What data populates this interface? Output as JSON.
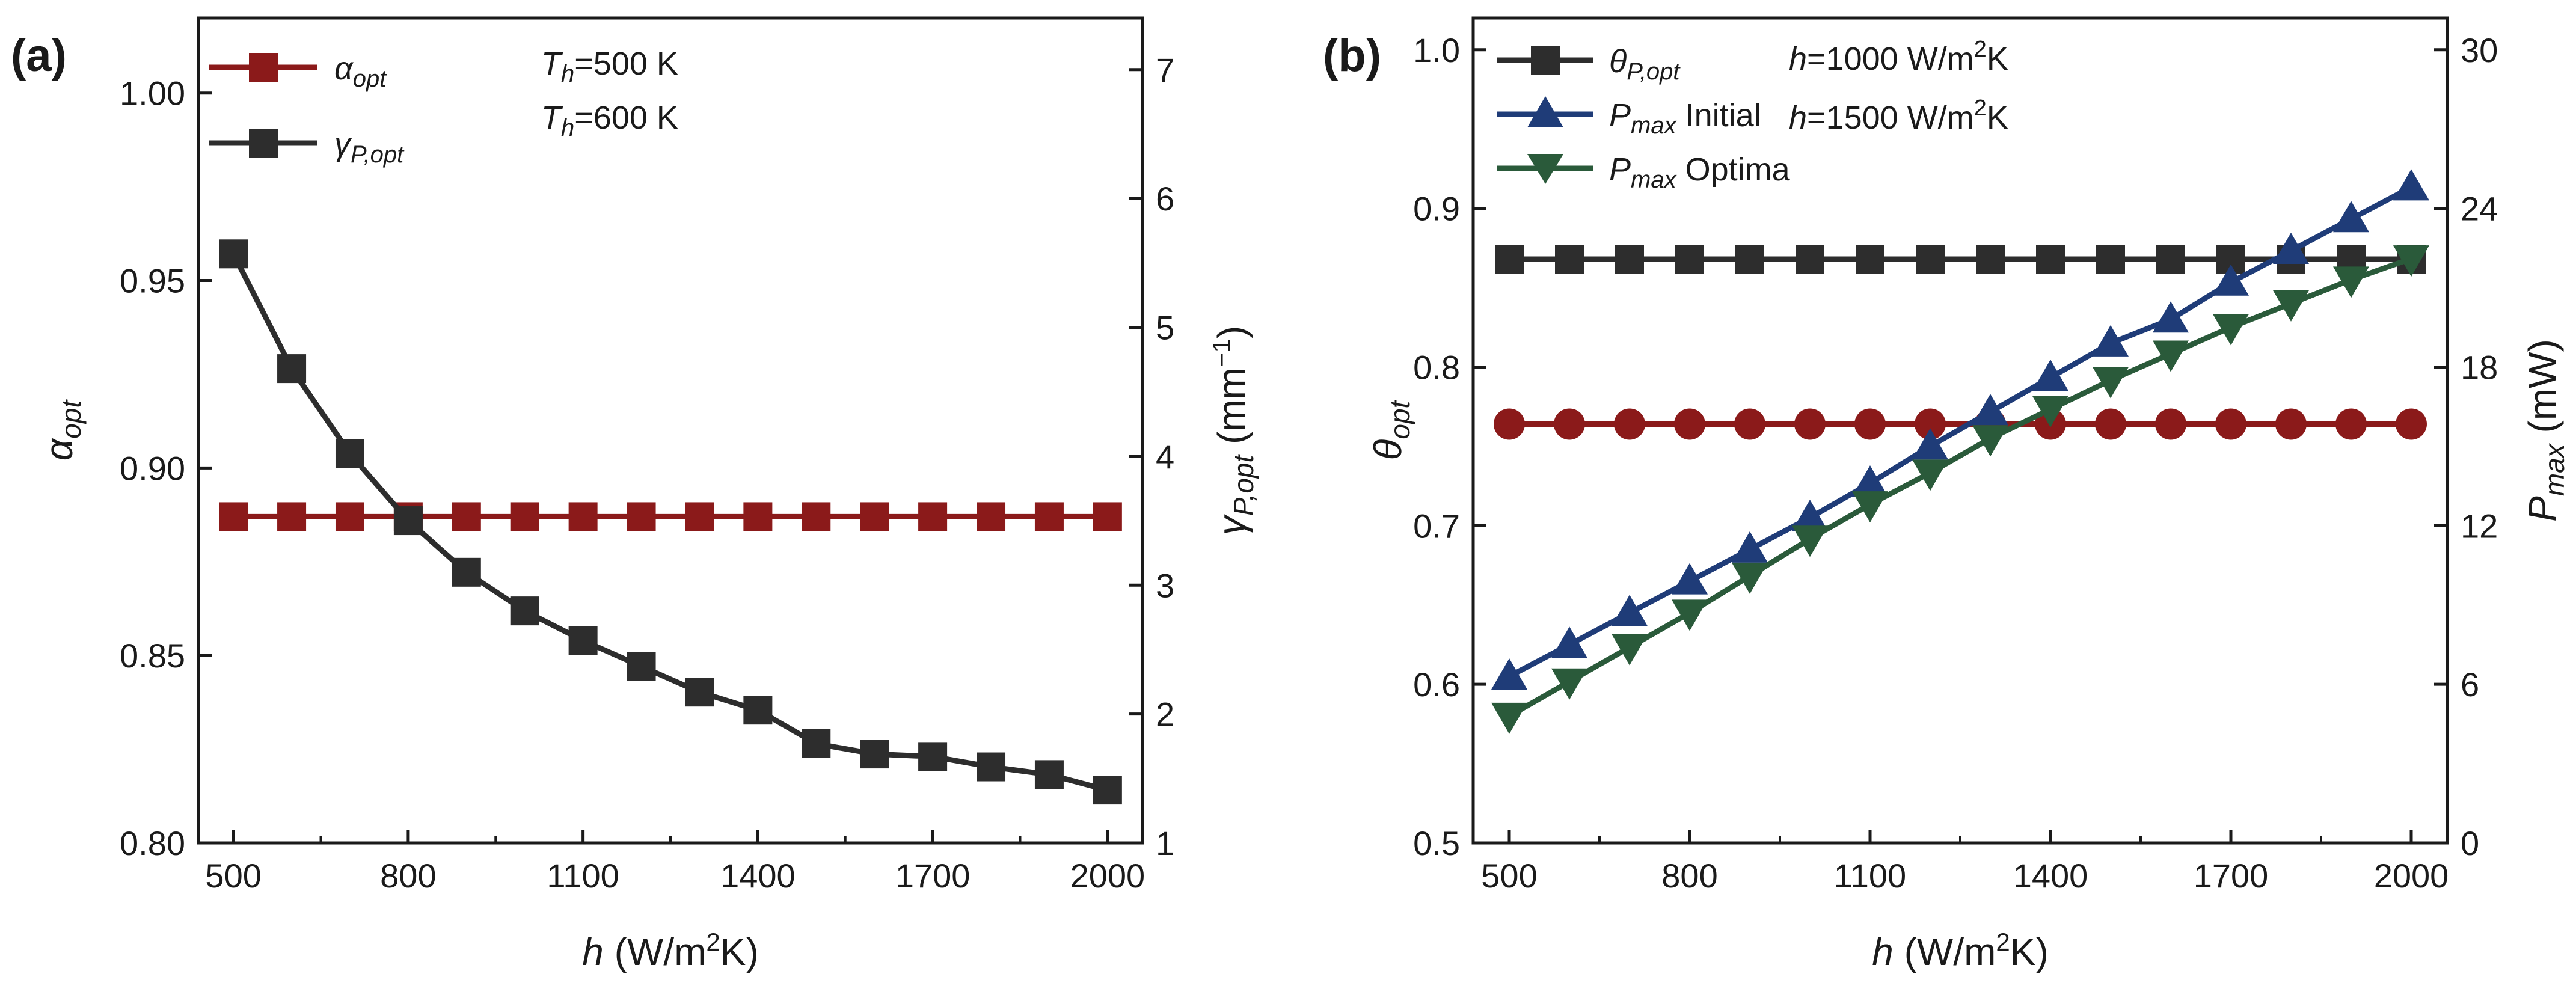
{
  "colors": {
    "red": "#8b1a1a",
    "black": "#2d2d2d",
    "blue": "#1f3c78",
    "green": "#2a5a3a",
    "axis": "#1a1a1a"
  },
  "chart_data": [
    {
      "panel": "(a)",
      "type": "line",
      "x": [
        500,
        600,
        700,
        800,
        900,
        1000,
        1100,
        1200,
        1300,
        1400,
        1500,
        1600,
        1700,
        1800,
        1900,
        2000
      ],
      "xlabel": {
        "italic": "h",
        "rest": " (W/m",
        "sup": "2",
        "tail": "K)"
      },
      "xlim": [
        440,
        2060
      ],
      "xticks": [
        500,
        800,
        1100,
        1400,
        1700,
        2000
      ],
      "ylabel_left": {
        "main": "α",
        "sub": "opt"
      },
      "ylim_left": [
        0.8,
        1.02
      ],
      "yticks_left": [
        "0.80",
        "0.85",
        "0.90",
        "0.95",
        "1.00"
      ],
      "ylabel_right": {
        "main": "γ",
        "sub": "P,opt",
        "unit_pre": " (mm",
        "unit_sup": "−1",
        "unit_post": ")"
      },
      "ylim_right": [
        1,
        7.4
      ],
      "yticks_right": [
        "1",
        "2",
        "3",
        "4",
        "5",
        "6",
        "7"
      ],
      "series": [
        {
          "name": "α",
          "sub": "opt",
          "axis": "left",
          "color": "red",
          "marker": "square",
          "values": [
            0.887,
            0.887,
            0.887,
            0.887,
            0.887,
            0.887,
            0.887,
            0.887,
            0.887,
            0.887,
            0.887,
            0.887,
            0.887,
            0.887,
            0.887,
            0.887
          ]
        },
        {
          "name": "γ",
          "sub": "P,opt",
          "axis": "right",
          "color": "black",
          "marker": "square",
          "values": [
            5.57,
            4.68,
            4.02,
            3.5,
            3.1,
            2.8,
            2.57,
            2.37,
            2.17,
            2.03,
            1.77,
            1.69,
            1.67,
            1.59,
            1.53,
            1.41
          ]
        }
      ],
      "annotations": [
        {
          "main": "T",
          "sub": "h",
          "rest": "=500 K"
        },
        {
          "main": "T",
          "sub": "h",
          "rest": "=600 K"
        }
      ]
    },
    {
      "panel": "(b)",
      "type": "line",
      "x": [
        500,
        600,
        700,
        800,
        900,
        1000,
        1100,
        1200,
        1300,
        1400,
        1500,
        1600,
        1700,
        1800,
        1900,
        2000
      ],
      "xlabel": {
        "italic": "h",
        "rest": " (W/m",
        "sup": "2",
        "tail": "K)"
      },
      "xlim": [
        440,
        2060
      ],
      "xticks": [
        500,
        800,
        1100,
        1400,
        1700,
        2000
      ],
      "ylabel_left": {
        "main": "θ",
        "sub": "opt"
      },
      "ylim_left": [
        0.5,
        1.02
      ],
      "yticks_left": [
        "0.5",
        "0.6",
        "0.7",
        "0.8",
        "0.9",
        "1.0"
      ],
      "ylabel_right": {
        "main": "P",
        "sub": "max",
        "unit_pre": " (mW)",
        "unit_sup": "",
        "unit_post": ""
      },
      "ylim_right": [
        0,
        31.2
      ],
      "yticks_right": [
        "0",
        "6",
        "12",
        "18",
        "24",
        "30"
      ],
      "series": [
        {
          "name": "θ",
          "sub": "P,opt",
          "label_rest": "",
          "axis": "left",
          "color": "black",
          "marker": "square",
          "values": [
            0.868,
            0.868,
            0.868,
            0.868,
            0.868,
            0.868,
            0.868,
            0.868,
            0.868,
            0.868,
            0.868,
            0.868,
            0.868,
            0.868,
            0.868,
            0.868
          ]
        },
        {
          "name": "θ",
          "sub": "P,opt",
          "axis": "left",
          "color": "red",
          "marker": "circle",
          "in_legend": false,
          "values": [
            0.764,
            0.764,
            0.764,
            0.764,
            0.764,
            0.764,
            0.764,
            0.764,
            0.764,
            0.764,
            0.764,
            0.764,
            0.764,
            0.764,
            0.764,
            0.764
          ]
        },
        {
          "name": "P",
          "sub": "max",
          "label_rest": " Initial",
          "axis": "right",
          "color": "blue",
          "marker": "triangle-up",
          "values": [
            6.3,
            7.5,
            8.7,
            9.9,
            11.1,
            12.3,
            13.6,
            15.0,
            16.3,
            17.6,
            18.9,
            19.8,
            21.2,
            22.4,
            23.6,
            24.8
          ]
        },
        {
          "name": "P",
          "sub": "max",
          "label_rest": " Optima",
          "axis": "right",
          "color": "green",
          "marker": "triangle-down",
          "values": [
            4.8,
            6.1,
            7.4,
            8.7,
            10.1,
            11.5,
            12.8,
            14.0,
            15.3,
            16.4,
            17.5,
            18.5,
            19.5,
            20.4,
            21.3,
            22.1
          ]
        }
      ],
      "annotations": [
        {
          "main": "h",
          "sub": "",
          "rest": "=1000 W/m",
          "sup": "2",
          "tail": "K"
        },
        {
          "main": "h",
          "sub": "",
          "rest": "=1500 W/m",
          "sup": "2",
          "tail": "K"
        }
      ]
    }
  ]
}
